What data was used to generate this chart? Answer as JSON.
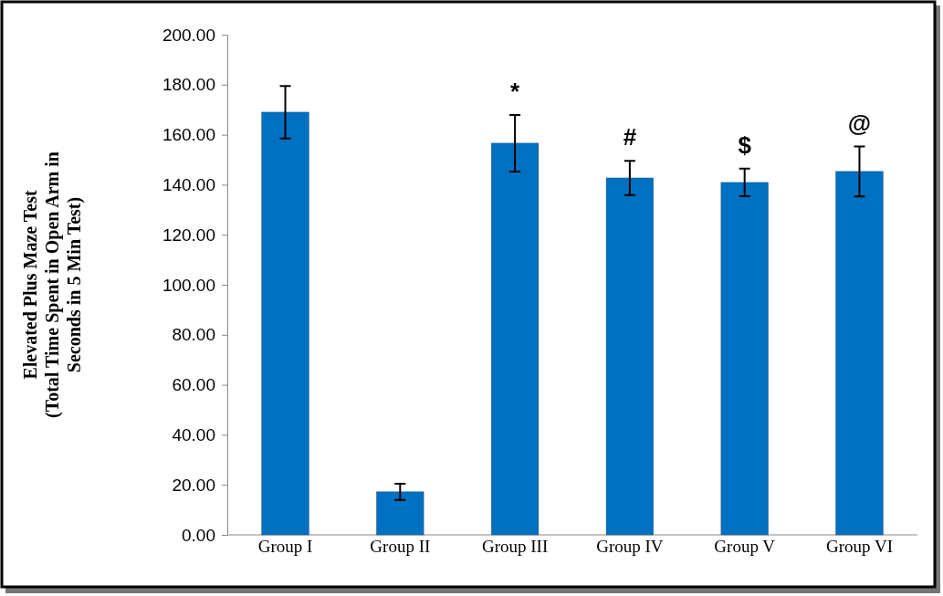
{
  "chart_data": {
    "type": "bar",
    "ylabel": "Elevated Plus Maze Test\n(Total Time Spent in Open Arm in\nSeconds in 5 Min Test)",
    "categories": [
      "Group I",
      "Group II",
      "Group III",
      "Group IV",
      "Group V",
      "Group VI"
    ],
    "values": [
      169,
      17.2,
      156.6,
      142.7,
      140.9,
      145.3
    ],
    "errors": [
      10.5,
      3.2,
      11.3,
      6.8,
      5.5,
      10
    ],
    "color": "#0070c0",
    "ylim": [
      0,
      200
    ],
    "yticks": [
      {
        "value": 0,
        "label": "0.00"
      },
      {
        "value": 20,
        "label": "20.00"
      },
      {
        "value": 40,
        "label": "40.00"
      },
      {
        "value": 60,
        "label": "60.00"
      },
      {
        "value": 80,
        "label": "80.00"
      },
      {
        "value": 100,
        "label": "100.00"
      },
      {
        "value": 120,
        "label": "120.00"
      },
      {
        "value": 140,
        "label": "140.00"
      },
      {
        "value": 160,
        "label": "160.00"
      },
      {
        "value": 180,
        "label": "180.00"
      },
      {
        "value": 200,
        "label": "200.00"
      }
    ],
    "annotations": [
      "*",
      "#",
      "$",
      "@"
    ]
  }
}
